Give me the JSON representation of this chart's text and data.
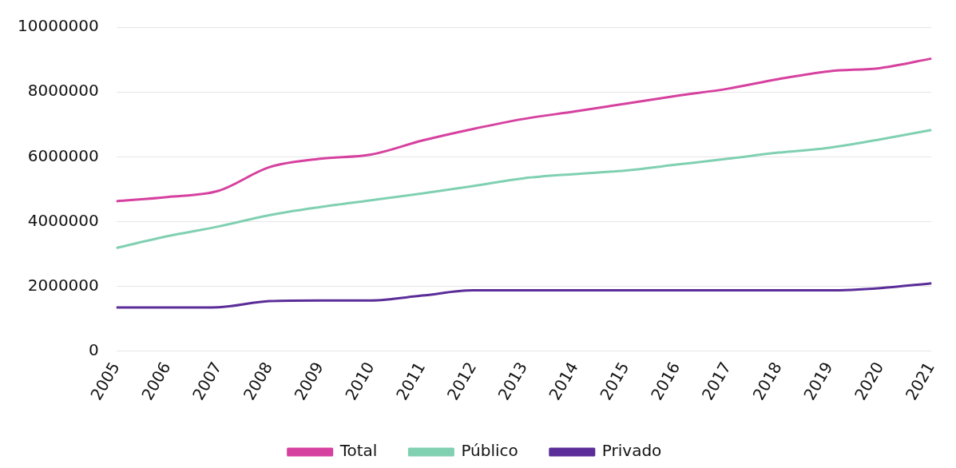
{
  "chart_data": {
    "type": "line",
    "categories": [
      "2005",
      "2006",
      "2007",
      "2008",
      "2009",
      "2010",
      "2011",
      "2012",
      "2013",
      "2014",
      "2015",
      "2016",
      "2017",
      "2018",
      "2019",
      "2020",
      "2021"
    ],
    "series": [
      {
        "name": "Total",
        "color": "#d6419f",
        "values": [
          4630000,
          4760000,
          4950000,
          5680000,
          5940000,
          6070000,
          6500000,
          6860000,
          7170000,
          7400000,
          7640000,
          7880000,
          8100000,
          8400000,
          8640000,
          8740000,
          9030000
        ]
      },
      {
        "name": "Público",
        "color": "#80d0b2",
        "values": [
          3190000,
          3550000,
          3850000,
          4200000,
          4450000,
          4660000,
          4870000,
          5100000,
          5340000,
          5470000,
          5580000,
          5760000,
          5940000,
          6130000,
          6280000,
          6540000,
          6830000
        ]
      },
      {
        "name": "Privado",
        "color": "#5a2d98",
        "values": [
          1350000,
          1350000,
          1360000,
          1550000,
          1570000,
          1570000,
          1720000,
          1880000,
          1880000,
          1880000,
          1880000,
          1880000,
          1880000,
          1880000,
          1880000,
          1950000,
          2100000
        ]
      }
    ],
    "ylim": [
      0,
      10000000
    ],
    "yticks": [
      0,
      2000000,
      4000000,
      6000000,
      8000000,
      10000000
    ],
    "grid": "y",
    "legend": "bottom",
    "marker": "none",
    "line_style": "solid"
  }
}
